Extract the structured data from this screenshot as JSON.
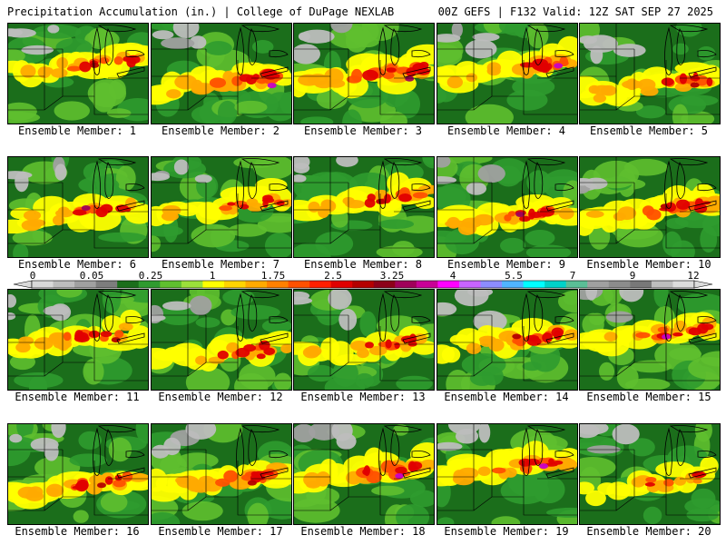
{
  "header": {
    "title_left": "Precipitation Accumulation (in.) | College of DuPage NEXLAB",
    "title_right": "00Z GEFS | F132 Valid: 12Z SAT SEP 27 2025"
  },
  "panels": [
    {
      "label": "Ensemble Member: 1",
      "intensity": 0.55,
      "peak": 3.25
    },
    {
      "label": "Ensemble Member: 2",
      "intensity": 0.75,
      "peak": 5.5
    },
    {
      "label": "Ensemble Member: 3",
      "intensity": 0.85,
      "peak": 4
    },
    {
      "label": "Ensemble Member: 4",
      "intensity": 0.7,
      "peak": 5.5
    },
    {
      "label": "Ensemble Member: 5",
      "intensity": 0.6,
      "peak": 3.25
    },
    {
      "label": "Ensemble Member: 6",
      "intensity": 0.5,
      "peak": 4
    },
    {
      "label": "Ensemble Member: 7",
      "intensity": 0.45,
      "peak": 2.5
    },
    {
      "label": "Ensemble Member: 8",
      "intensity": 0.6,
      "peak": 3.25
    },
    {
      "label": "Ensemble Member: 9",
      "intensity": 0.65,
      "peak": 4
    },
    {
      "label": "Ensemble Member: 10",
      "intensity": 0.7,
      "peak": 3.25
    },
    {
      "label": "Ensemble Member: 11",
      "intensity": 0.55,
      "peak": 3.25
    },
    {
      "label": "Ensemble Member: 12",
      "intensity": 0.4,
      "peak": 2.5
    },
    {
      "label": "Ensemble Member: 13",
      "intensity": 0.45,
      "peak": 2.5
    },
    {
      "label": "Ensemble Member: 14",
      "intensity": 0.6,
      "peak": 3.25
    },
    {
      "label": "Ensemble Member: 15",
      "intensity": 0.55,
      "peak": 5.5
    },
    {
      "label": "Ensemble Member: 16",
      "intensity": 0.55,
      "peak": 3.25
    },
    {
      "label": "Ensemble Member: 17",
      "intensity": 0.75,
      "peak": 3.25
    },
    {
      "label": "Ensemble Member: 18",
      "intensity": 0.8,
      "peak": 5.5
    },
    {
      "label": "Ensemble Member: 19",
      "intensity": 0.65,
      "peak": 5.5
    },
    {
      "label": "Ensemble Member: 20",
      "intensity": 0.35,
      "peak": 1.75
    }
  ],
  "colorbar": {
    "tick_labels": [
      "0",
      "0.05",
      "0.25",
      "1",
      "1.75",
      "2.5",
      "3.25",
      "4",
      "5.5",
      "7",
      "9",
      "12"
    ],
    "colors": [
      "#d9d9d9",
      "#bdbdbd",
      "#a0a0a0",
      "#7d7d7d",
      "#1b6e1b",
      "#2f9b2f",
      "#5fbf2f",
      "#9be03a",
      "#ffff00",
      "#ffd400",
      "#ffaa00",
      "#ff8000",
      "#ff5000",
      "#ff1e00",
      "#e00000",
      "#b40000",
      "#8c0019",
      "#a0005a",
      "#c80096",
      "#ff00ff",
      "#c864ff",
      "#8c8cff",
      "#50b4ff",
      "#00ffff",
      "#00d2c8",
      "#5abe96",
      "#a0a0a0",
      "#8c8c8c",
      "#787878",
      "#bebebe",
      "#dcdcdc"
    ]
  }
}
